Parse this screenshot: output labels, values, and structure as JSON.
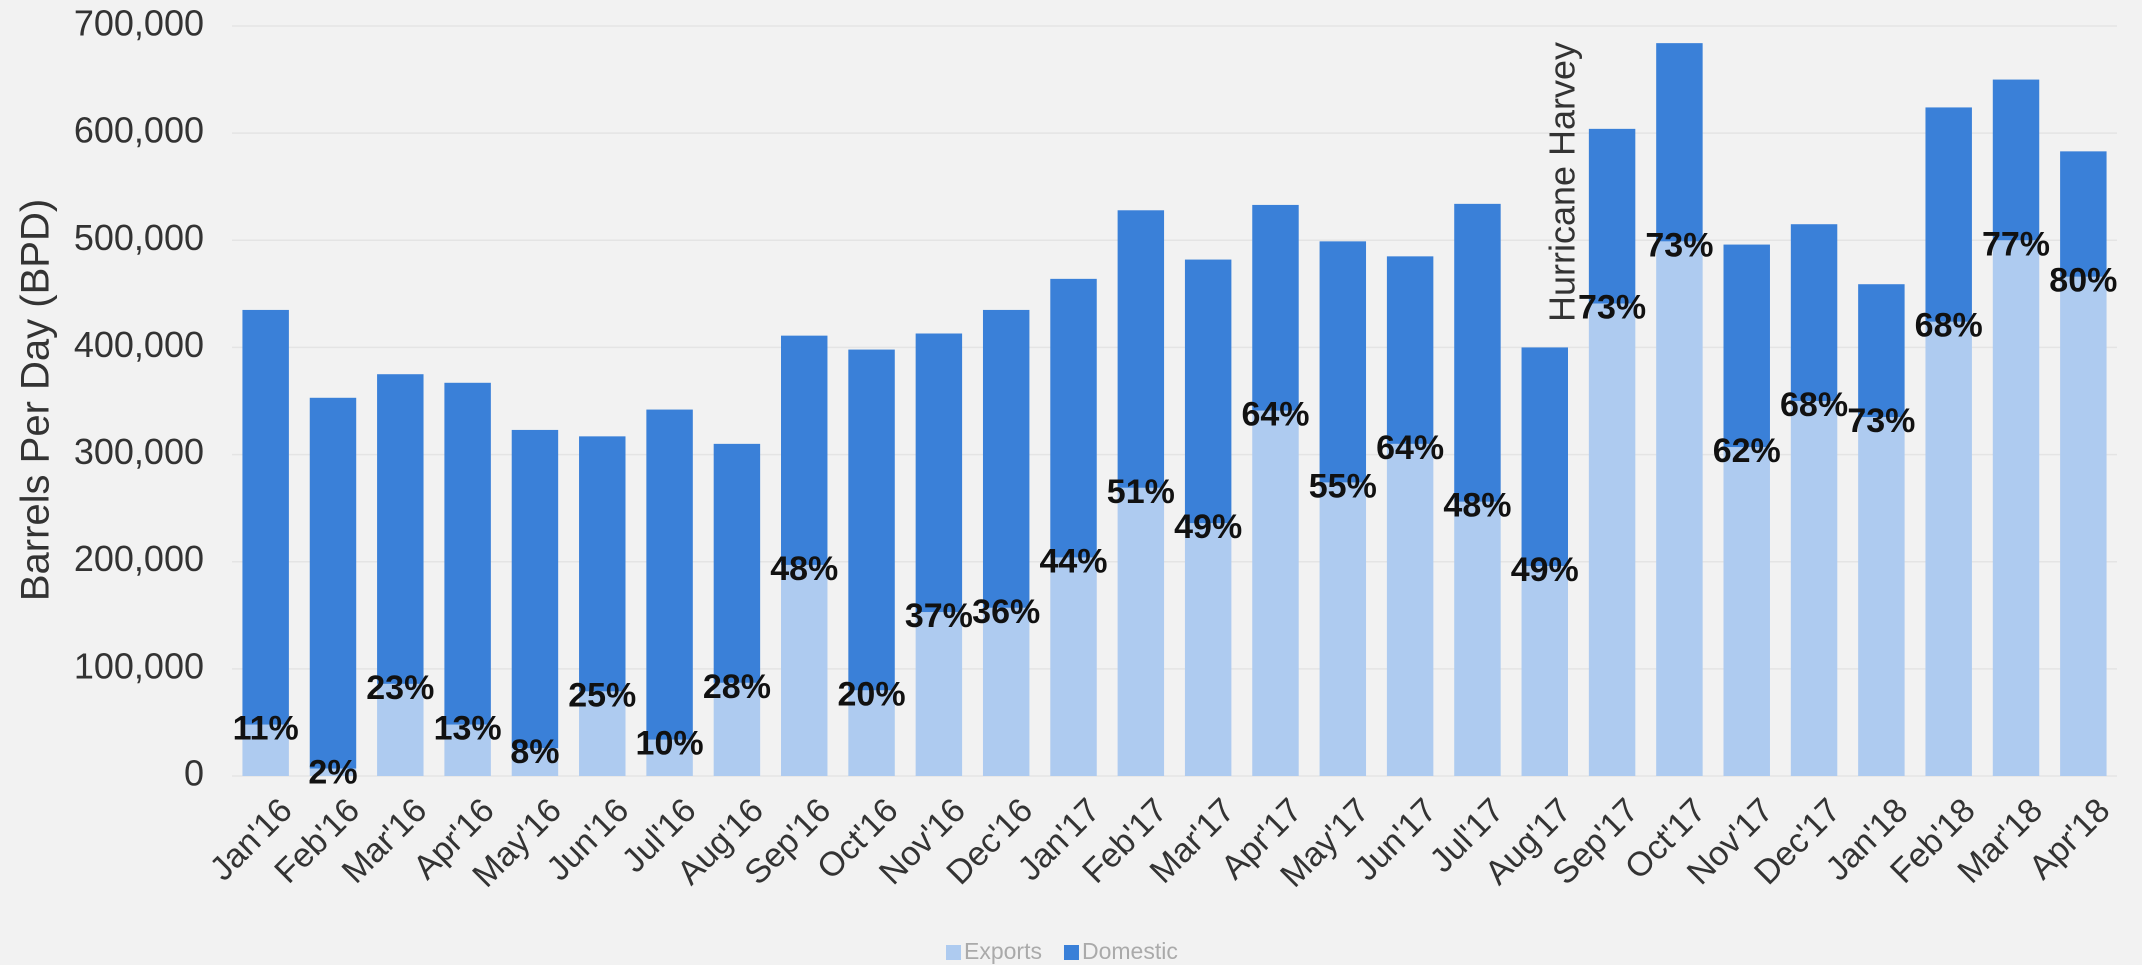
{
  "chart_data": {
    "type": "stacked_bar",
    "y_axis_label": "Barrels Per Day (BPD)",
    "annotation": "Hurricane Harvey",
    "categories": [
      "Jan'16",
      "Feb'16",
      "Mar'16",
      "Apr'16",
      "May'16",
      "Jun'16",
      "Jul'16",
      "Aug'16",
      "Sep'16",
      "Oct'16",
      "Nov'16",
      "Dec'16",
      "Jan'17",
      "Feb'17",
      "Mar'17",
      "Apr'17",
      "May'17",
      "Jun'17",
      "Jul'17",
      "Aug'17",
      "Sep'17",
      "Oct'17",
      "Nov'17",
      "Dec'17",
      "Jan'18",
      "Feb'18",
      "Mar'18",
      "Apr'18"
    ],
    "series": [
      {
        "name": "Exports",
        "color": "#aecbf0",
        "values": [
          48000,
          7000,
          86000,
          48000,
          26000,
          79000,
          34000,
          87000,
          197000,
          80000,
          153000,
          157000,
          204000,
          269000,
          236000,
          341000,
          274000,
          310000,
          256000,
          196000,
          441000,
          499000,
          307000,
          350000,
          335000,
          424000,
          500000,
          466000
        ]
      },
      {
        "name": "Domestic",
        "color": "#3a80d8",
        "values": [
          387000,
          346000,
          289000,
          319000,
          297000,
          238000,
          308000,
          223000,
          214000,
          318000,
          260000,
          278000,
          260000,
          259000,
          246000,
          192000,
          225000,
          175000,
          278000,
          204000,
          163000,
          185000,
          189000,
          165000,
          124000,
          200000,
          150000,
          117000
        ]
      }
    ],
    "export_share_labels": [
      "11%",
      "2%",
      "23%",
      "13%",
      "8%",
      "25%",
      "10%",
      "28%",
      "48%",
      "20%",
      "37%",
      "36%",
      "44%",
      "51%",
      "49%",
      "64%",
      "55%",
      "64%",
      "48%",
      "49%",
      "73%",
      "73%",
      "62%",
      "68%",
      "73%",
      "68%",
      "77%",
      "80%"
    ],
    "ylim": [
      0,
      700000
    ],
    "yticks": [
      0,
      {
        "value": 100000,
        "label": "100,000"
      },
      {
        "value": 200000,
        "label": "200,000"
      },
      {
        "value": 300000,
        "label": "300,000"
      },
      {
        "value": 400000,
        "label": "400,000"
      },
      {
        "value": 500000,
        "label": "500,000"
      },
      {
        "value": 600000,
        "label": "600,000"
      },
      {
        "value": 700000,
        "label": "700,000"
      }
    ],
    "grid": true,
    "legend": "bottom"
  }
}
